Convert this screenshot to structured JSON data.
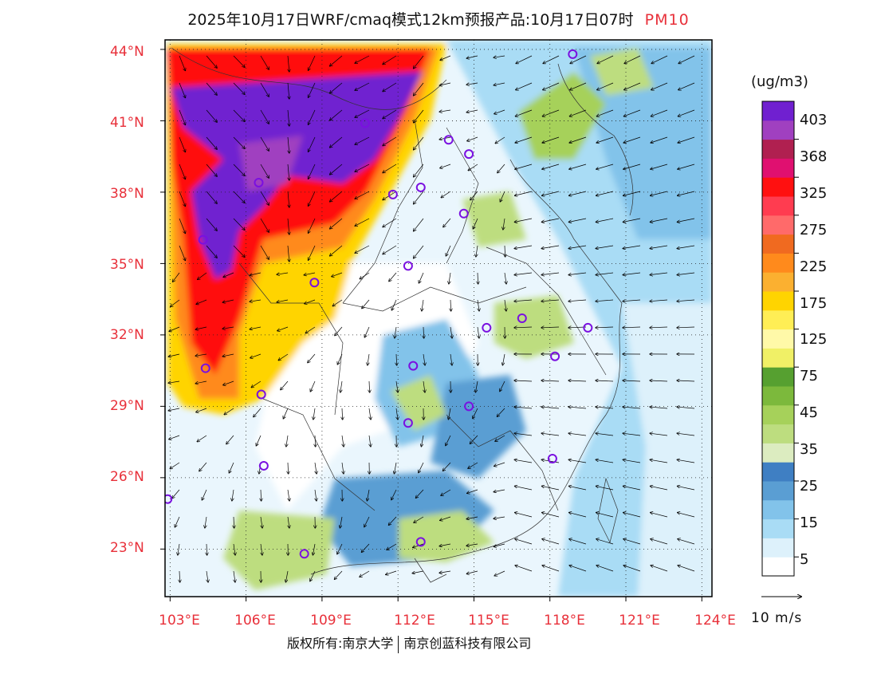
{
  "title": {
    "main": "2025年10月17日WRF/cmaq模式12km预报产品:10月17日07时",
    "variable": "PM10"
  },
  "map": {
    "lat_labels": [
      "44°N",
      "41°N",
      "38°N",
      "35°N",
      "32°N",
      "29°N",
      "26°N",
      "23°N"
    ],
    "lon_labels": [
      "103°E",
      "106°E",
      "109°E",
      "112°E",
      "115°E",
      "118°E",
      "121°E",
      "124°E"
    ],
    "lat_range": [
      21.0,
      44.4
    ],
    "lon_range": [
      102.8,
      124.4
    ],
    "wind_reference": "10 m/s",
    "stations": [
      [
        118.9,
        43.8
      ],
      [
        110.7,
        40.9
      ],
      [
        114.0,
        40.2
      ],
      [
        114.8,
        39.6
      ],
      [
        106.5,
        38.4
      ],
      [
        111.8,
        37.9
      ],
      [
        112.9,
        38.2
      ],
      [
        114.6,
        37.1
      ],
      [
        104.3,
        36.0
      ],
      [
        112.4,
        34.9
      ],
      [
        108.7,
        34.2
      ],
      [
        115.5,
        32.3
      ],
      [
        116.9,
        32.7
      ],
      [
        119.5,
        32.3
      ],
      [
        118.2,
        31.1
      ],
      [
        104.4,
        30.6
      ],
      [
        112.6,
        30.7
      ],
      [
        106.6,
        29.5
      ],
      [
        114.8,
        29.0
      ],
      [
        112.4,
        28.3
      ],
      [
        106.7,
        26.5
      ],
      [
        118.1,
        26.8
      ],
      [
        102.9,
        25.1
      ],
      [
        108.3,
        22.8
      ],
      [
        112.9,
        23.3
      ]
    ]
  },
  "colorbar": {
    "units": "(ug/m3)",
    "colors": [
      "#ffffff",
      "#ddf1fb",
      "#a9dcf5",
      "#82c3ea",
      "#5a9ed3",
      "#3f7fc3",
      "#dcecc0",
      "#bddd7f",
      "#a6d15a",
      "#7cb93c",
      "#56a030",
      "#f0f066",
      "#fff9a8",
      "#ffee55",
      "#ffd400",
      "#fbb030",
      "#ff8a1c",
      "#f06a20",
      "#ff6a6a",
      "#ff3c50",
      "#ff1010",
      "#e01070",
      "#b02050",
      "#a040c0",
      "#7020d0"
    ],
    "labels": [
      "5",
      "15",
      "25",
      "35",
      "45",
      "75",
      "125",
      "175",
      "225",
      "275",
      "325",
      "368",
      "403"
    ]
  },
  "credit": {
    "left": "版权所有:南京大学",
    "right": "南京创蓝科技有限公司"
  }
}
